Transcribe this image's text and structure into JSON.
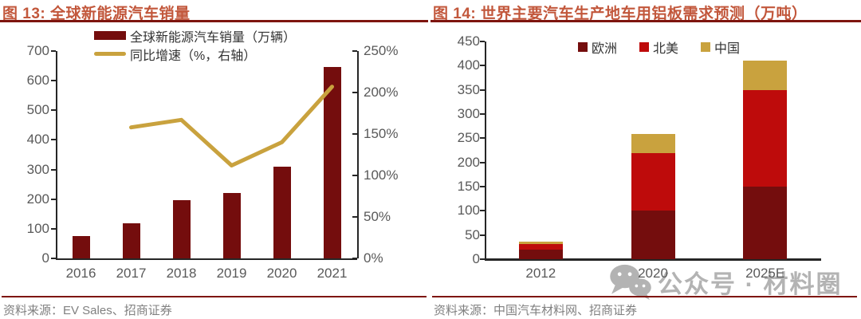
{
  "watermark": {
    "text": "公众号 · 材料圈",
    "icon": "wechat-icon",
    "color": "#A6A6A6"
  },
  "panels": [
    {
      "source": "资料来源：EV Sales、招商证券"
    },
    {
      "source": "资料来源：中国汽车材料网、招商证券"
    }
  ],
  "colors": {
    "title": "#C2573B",
    "rule": "#7E150F",
    "maroon": "#740D0D",
    "red": "#BE0B0B",
    "gold": "#C9A23E",
    "axis": "#262626",
    "axis_label": "#595959",
    "source_text": "#808080"
  },
  "chart_data": [
    {
      "type": "bar",
      "title": "图 13: 全球新能源汽车销量",
      "categories": [
        "2016",
        "2017",
        "2018",
        "2019",
        "2020",
        "2021"
      ],
      "series": [
        {
          "name": "全球新能源汽车销量（万辆）",
          "kind": "bar",
          "axis": "left",
          "color": "#740D0D",
          "values": [
            75,
            118,
            197,
            220,
            310,
            645
          ]
        },
        {
          "name": "同比增速（%，右轴）",
          "kind": "line",
          "axis": "right",
          "color": "#C9A23E",
          "values": [
            null,
            158,
            167,
            112,
            140,
            207
          ]
        }
      ],
      "left_axis": {
        "min": 0,
        "max": 700,
        "step": 100,
        "suffix": ""
      },
      "right_axis": {
        "min": 0,
        "max": 250,
        "step": 50,
        "suffix": "%"
      },
      "legend_position": "top-left-stacked",
      "grid": false,
      "xlabel": "",
      "ylabel": ""
    },
    {
      "type": "bar",
      "stacked": true,
      "title": "图 14: 世界主要汽车生产地车用铝板需求预测（万吨）",
      "categories": [
        "2012",
        "2020",
        "2025E"
      ],
      "series": [
        {
          "name": "欧洲",
          "kind": "bar",
          "color": "#740D0D",
          "values": [
            20,
            100,
            150
          ]
        },
        {
          "name": "北美",
          "kind": "bar",
          "color": "#BE0B0B",
          "values": [
            12,
            120,
            200
          ]
        },
        {
          "name": "中国",
          "kind": "bar",
          "color": "#C9A23E",
          "values": [
            5,
            38,
            60
          ]
        }
      ],
      "left_axis": {
        "min": 0,
        "max": 450,
        "step": 50,
        "suffix": ""
      },
      "legend_position": "top-row",
      "grid": false,
      "xlabel": "",
      "ylabel": ""
    }
  ]
}
